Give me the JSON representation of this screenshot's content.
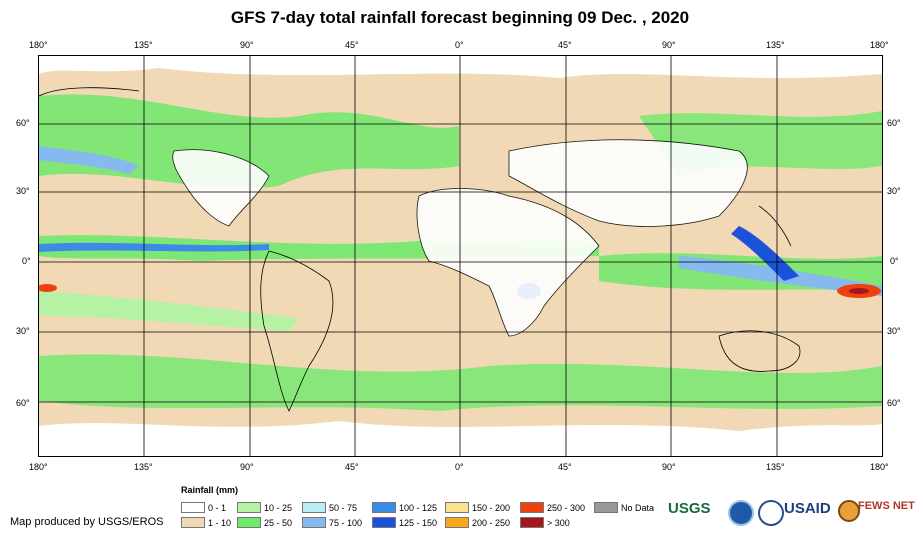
{
  "title": "GFS 7-day total rainfall forecast beginning 09 Dec. , 2020",
  "lon_ticks": [
    "180°",
    "135°",
    "90°",
    "45°",
    "0°",
    "45°",
    "90°",
    "135°",
    "180°"
  ],
  "lat_ticks": [
    "60°",
    "30°",
    "0°",
    "30°",
    "60°"
  ],
  "legend": {
    "title": "Rainfall (mm)",
    "classes": [
      {
        "label": "0 - 1",
        "color": "#ffffff"
      },
      {
        "label": "1 - 10",
        "color": "#f1d9b6"
      },
      {
        "label": "10 - 25",
        "color": "#b5f2a3"
      },
      {
        "label": "25 - 50",
        "color": "#6fe86b"
      },
      {
        "label": "50 - 75",
        "color": "#b8ecf6"
      },
      {
        "label": "75 - 100",
        "color": "#86b9ee"
      },
      {
        "label": "100 - 125",
        "color": "#3d8be8"
      },
      {
        "label": "125 - 150",
        "color": "#1a52d9"
      },
      {
        "label": "150 - 200",
        "color": "#fbe38e"
      },
      {
        "label": "200 - 250",
        "color": "#f8a61c"
      },
      {
        "label": "250 - 300",
        "color": "#ee4010"
      },
      {
        "label": "> 300",
        "color": "#a3171c"
      },
      {
        "label": "No Data",
        "color": "#999999"
      }
    ]
  },
  "credit": "Map produced by USGS/EROS",
  "logos": [
    "USGS",
    "USAID",
    "FEWS NET"
  ]
}
